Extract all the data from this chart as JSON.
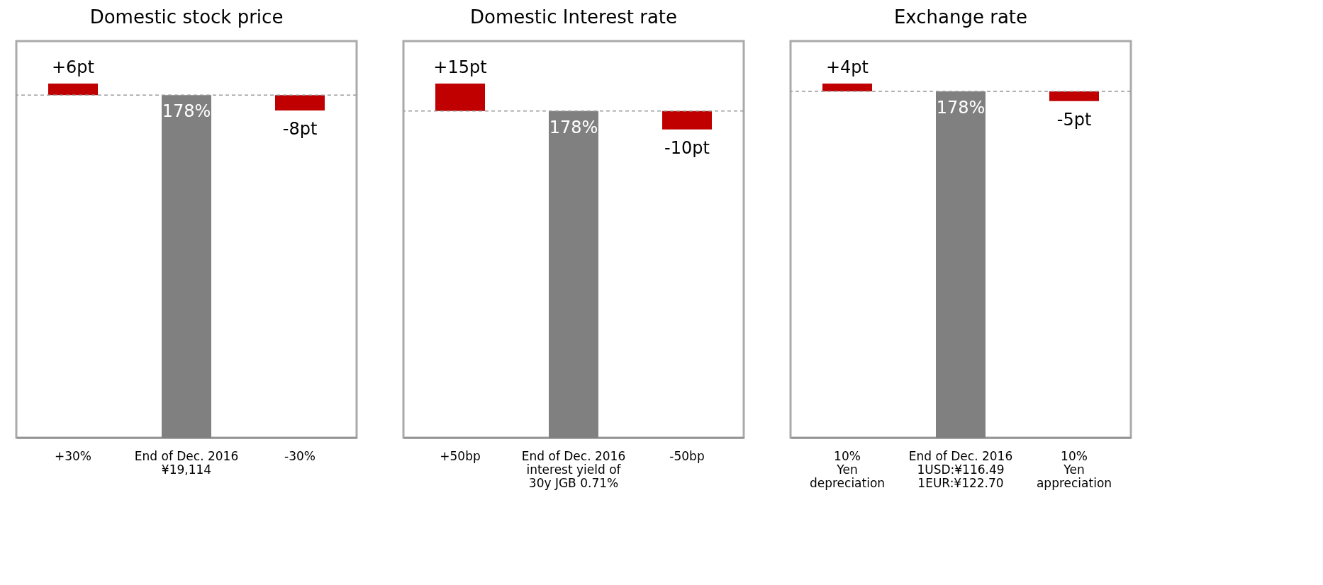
{
  "chart_data": [
    {
      "type": "bar",
      "title": "Domestic stock price",
      "categories": [
        "+30%",
        "End of Dec. 2016\n¥19,114",
        "-30%"
      ],
      "series": [
        {
          "color": "#808080",
          "values": [
            null,
            178,
            null
          ],
          "value_labels": [
            null,
            "178%",
            null
          ]
        },
        {
          "color": "#c00000",
          "axis": "y2",
          "values": [
            6,
            null,
            -8
          ],
          "value_labels": [
            "+6pt",
            null,
            "-8pt"
          ]
        }
      ],
      "ref_lines": [
        {
          "axis": "y",
          "value": 178,
          "color": "#999999",
          "line_style": "dashed"
        }
      ],
      "tick_labels": "x",
      "grid": false
    },
    {
      "type": "bar",
      "title": "Domestic Interest rate",
      "categories": [
        "+50bp",
        "End of Dec. 2016\ninterest yield of\n30y JGB 0.71%",
        "-50bp"
      ],
      "series": [
        {
          "color": "#808080",
          "values": [
            null,
            178,
            null
          ],
          "value_labels": [
            null,
            "178%",
            null
          ]
        },
        {
          "color": "#c00000",
          "axis": "y2",
          "values": [
            15,
            null,
            -10
          ],
          "value_labels": [
            "+15pt",
            null,
            "-10pt"
          ]
        }
      ],
      "ref_lines": [
        {
          "axis": "y",
          "value": 178,
          "color": "#999999",
          "line_style": "dashed"
        }
      ],
      "tick_labels": "x",
      "grid": false
    },
    {
      "type": "bar",
      "title": "Exchange rate",
      "categories": [
        "10%\nYen\ndepreciation",
        "End of Dec. 2016\n1USD:¥116.49\n1EUR:¥122.70",
        "10%\nYen\nappreciation"
      ],
      "series": [
        {
          "color": "#808080",
          "values": [
            null,
            178,
            null
          ],
          "value_labels": [
            null,
            "178%",
            null
          ]
        },
        {
          "color": "#c00000",
          "axis": "y2",
          "values": [
            4,
            null,
            -5
          ],
          "value_labels": [
            "+4pt",
            null,
            "-5pt"
          ]
        }
      ],
      "ref_lines": [
        {
          "axis": "y",
          "value": 178,
          "color": "#999999",
          "line_style": "dashed"
        }
      ],
      "tick_labels": "x",
      "grid": false
    }
  ]
}
